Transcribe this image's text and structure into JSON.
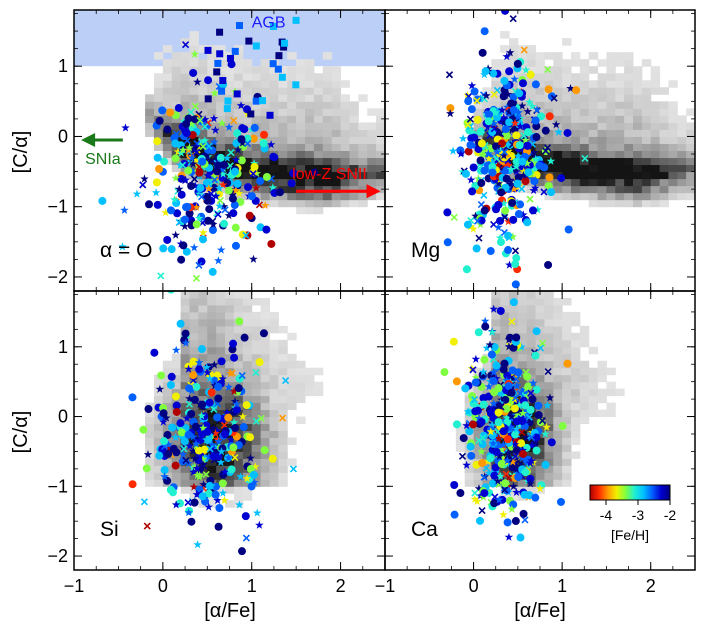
{
  "figure": {
    "ylabel": "[C/α]",
    "xlabel": "[α/Fe]",
    "colorbar": {
      "label": "[Fe/H]",
      "min": -4.5,
      "max": -2,
      "ticks": [
        "-4",
        "-3",
        "-2"
      ],
      "tick_values": [
        -4,
        -3,
        -2
      ],
      "colors": [
        "#b00000",
        "#ff2a00",
        "#ff9900",
        "#f0f000",
        "#80ff40",
        "#20f0d0",
        "#00c0ff",
        "#0060ff",
        "#0000d0",
        "#000080"
      ]
    }
  },
  "chart_data": [
    {
      "type": "scatter",
      "panel": "top-left",
      "label": "α = O",
      "xlim": [
        -1,
        2.5
      ],
      "ylim": [
        -2.2,
        1.8
      ],
      "xticks": [
        -1,
        0,
        1,
        2
      ],
      "yticks": [
        -2,
        -1,
        0,
        1
      ],
      "xticklabels": [],
      "yticklabels": [
        "−2",
        "−1",
        "0",
        "1"
      ],
      "band": {
        "label": "AGB",
        "ymin": 1.0,
        "ymax": 1.8,
        "color": "#2060e0"
      },
      "arrows": [
        {
          "label": "SNIa",
          "from": [
            -0.45,
            -0.05
          ],
          "to": [
            -0.92,
            -0.05
          ],
          "color": "#1a7a1a"
        },
        {
          "label": "low-Z SNII",
          "from": [
            1.5,
            -0.78
          ],
          "to": [
            2.45,
            -0.78
          ],
          "color": "#ff0000"
        }
      ],
      "density": {
        "center": [
          0.9,
          -0.75
        ],
        "spread": [
          0.85,
          0.5
        ],
        "ridge": "arc",
        "xrange": [
          -0.2,
          2.5
        ]
      },
      "points_summary": {
        "x_center": 0.5,
        "x_spread": 0.35,
        "y_center": -0.6,
        "y_spread": 0.55,
        "n": 320
      }
    },
    {
      "type": "scatter",
      "panel": "top-right",
      "label": "Mg",
      "xlim": [
        -1,
        2.5
      ],
      "ylim": [
        -2.2,
        1.8
      ],
      "xticks": [
        -1,
        0,
        1,
        2
      ],
      "yticks": [
        -2,
        -1,
        0,
        1
      ],
      "xticklabels": [],
      "yticklabels": [],
      "density": {
        "center": [
          1.0,
          -0.7
        ],
        "spread": [
          0.9,
          0.5
        ],
        "ridge": "arc",
        "xrange": [
          0.0,
          2.5
        ]
      },
      "points_summary": {
        "x_center": 0.35,
        "x_spread": 0.25,
        "y_center": -0.3,
        "y_spread": 0.6,
        "n": 420
      }
    },
    {
      "type": "scatter",
      "panel": "bottom-left",
      "label": "Si",
      "xlim": [
        -1,
        2.5
      ],
      "ylim": [
        -2.2,
        1.8
      ],
      "xticks": [
        -1,
        0,
        1,
        2
      ],
      "yticks": [
        -2,
        -1,
        0,
        1
      ],
      "xticklabels": [
        "−1",
        "0",
        "1",
        "2"
      ],
      "yticklabels": [
        "−2",
        "−1",
        "0",
        "1"
      ],
      "density": {
        "center": [
          0.55,
          -0.4
        ],
        "spread": [
          0.45,
          0.7
        ],
        "ridge": "box",
        "xrange": [
          -0.2,
          2.4
        ]
      },
      "points_summary": {
        "x_center": 0.5,
        "x_spread": 0.3,
        "y_center": -0.3,
        "y_spread": 0.6,
        "n": 300
      }
    },
    {
      "type": "scatter",
      "panel": "bottom-right",
      "label": "Ca",
      "xlim": [
        -1,
        2.5
      ],
      "ylim": [
        -2.2,
        1.8
      ],
      "xticks": [
        -1,
        0,
        1,
        2
      ],
      "yticks": [
        -2,
        -1,
        0,
        1
      ],
      "xticklabels": [
        "−1",
        "0",
        "1",
        "2"
      ],
      "yticklabels": [],
      "density": {
        "center": [
          0.45,
          -0.3
        ],
        "spread": [
          0.35,
          0.7
        ],
        "ridge": "box",
        "xrange": [
          -0.2,
          2.3
        ]
      },
      "points_summary": {
        "x_center": 0.35,
        "x_spread": 0.22,
        "y_center": -0.2,
        "y_spread": 0.6,
        "n": 420
      }
    }
  ]
}
